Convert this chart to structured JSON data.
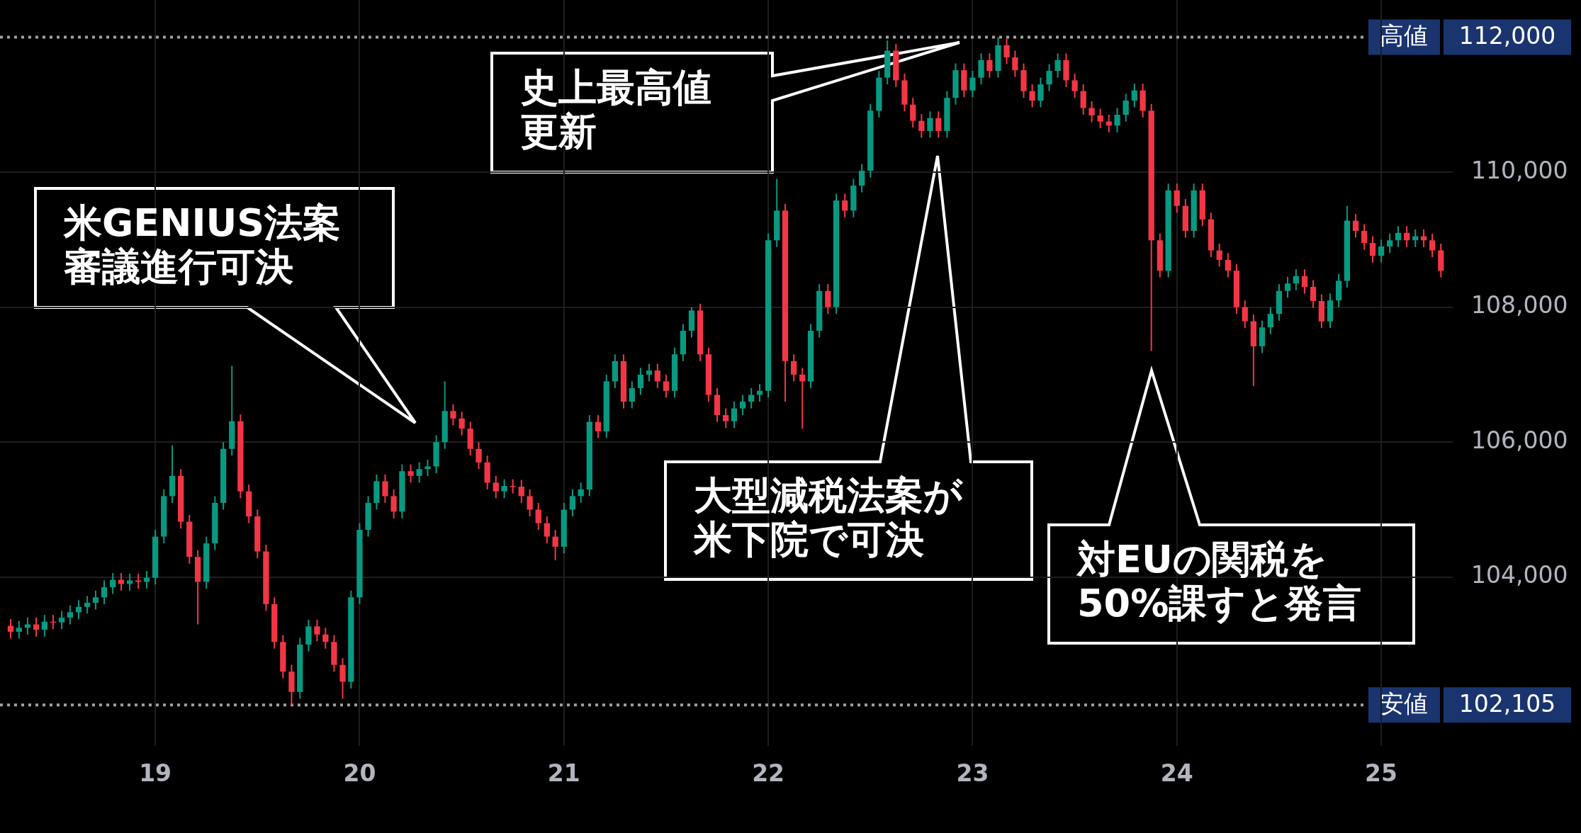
{
  "chart_data": {
    "type": "candlestick",
    "x": [
      18.292,
      18.333,
      18.375,
      18.417,
      18.458,
      18.5,
      18.542,
      18.583,
      18.625,
      18.667,
      18.708,
      18.75,
      18.792,
      18.833,
      18.875,
      18.917,
      18.958,
      19,
      19.042,
      19.083,
      19.125,
      19.167,
      19.208,
      19.25,
      19.292,
      19.333,
      19.375,
      19.417,
      19.458,
      19.5,
      19.542,
      19.583,
      19.625,
      19.667,
      19.708,
      19.75,
      19.792,
      19.833,
      19.875,
      19.917,
      19.958,
      20,
      20.042,
      20.083,
      20.125,
      20.167,
      20.208,
      20.25,
      20.292,
      20.333,
      20.375,
      20.417,
      20.458,
      20.5,
      20.542,
      20.583,
      20.625,
      20.667,
      20.708,
      20.75,
      20.792,
      20.833,
      20.875,
      20.917,
      20.958,
      21,
      21.042,
      21.083,
      21.125,
      21.167,
      21.208,
      21.25,
      21.292,
      21.333,
      21.375,
      21.417,
      21.458,
      21.5,
      21.542,
      21.583,
      21.625,
      21.667,
      21.708,
      21.75,
      21.792,
      21.833,
      21.875,
      21.917,
      21.958,
      22,
      22.042,
      22.083,
      22.125,
      22.167,
      22.208,
      22.25,
      22.292,
      22.333,
      22.375,
      22.417,
      22.458,
      22.5,
      22.542,
      22.583,
      22.625,
      22.667,
      22.708,
      22.75,
      22.792,
      22.833,
      22.875,
      22.917,
      22.958,
      23,
      23.042,
      23.083,
      23.125,
      23.167,
      23.208,
      23.25,
      23.292,
      23.333,
      23.375,
      23.417,
      23.458,
      23.5,
      23.542,
      23.583,
      23.625,
      23.667,
      23.708,
      23.75,
      23.792,
      23.833,
      23.875,
      23.917,
      23.958,
      24,
      24.042,
      24.083,
      24.125,
      24.167,
      24.208,
      24.25,
      24.292,
      24.333,
      24.375,
      24.417,
      24.458,
      24.5,
      24.542,
      24.583,
      24.625,
      24.667,
      24.708,
      24.75,
      24.792,
      24.833,
      24.875,
      24.917,
      24.958,
      25,
      25.042,
      25.083,
      25.125,
      25.167,
      25.208,
      25.25,
      25.292
    ],
    "ohlc": [
      [
        103280,
        103380,
        103090,
        103190
      ],
      [
        103190,
        103350,
        103090,
        103250
      ],
      [
        103250,
        103400,
        103150,
        103300
      ],
      [
        103300,
        103400,
        103120,
        103220
      ],
      [
        103220,
        103440,
        103120,
        103340
      ],
      [
        103340,
        103440,
        103230,
        103330
      ],
      [
        103330,
        103500,
        103230,
        103400
      ],
      [
        103400,
        103580,
        103300,
        103480
      ],
      [
        103480,
        103660,
        103380,
        103560
      ],
      [
        103560,
        103720,
        103460,
        103620
      ],
      [
        103620,
        103800,
        103520,
        103700
      ],
      [
        103700,
        103950,
        103600,
        103850
      ],
      [
        103850,
        104060,
        103750,
        103960
      ],
      [
        103960,
        104060,
        103800,
        103900
      ],
      [
        103900,
        104050,
        103800,
        103950
      ],
      [
        103950,
        104050,
        103830,
        103930
      ],
      [
        103930,
        104090,
        103830,
        103990
      ],
      [
        103990,
        104700,
        103890,
        104600
      ],
      [
        104600,
        105300,
        104500,
        105200
      ],
      [
        105200,
        105950,
        105100,
        105500
      ],
      [
        105500,
        105600,
        104720,
        104820
      ],
      [
        104820,
        104920,
        104200,
        104300
      ],
      [
        104300,
        104400,
        103300,
        103930
      ],
      [
        103930,
        104600,
        103830,
        104500
      ],
      [
        104500,
        105200,
        104400,
        105100
      ],
      [
        105100,
        106000,
        105000,
        105900
      ],
      [
        105900,
        107130,
        105800,
        106310
      ],
      [
        106310,
        106410,
        105170,
        105270
      ],
      [
        105270,
        105370,
        104800,
        104900
      ],
      [
        104900,
        105000,
        104280,
        104380
      ],
      [
        104380,
        104480,
        103500,
        103600
      ],
      [
        103600,
        103700,
        102940,
        103040
      ],
      [
        103040,
        103140,
        102500,
        102600
      ],
      [
        102600,
        102700,
        102105,
        102300
      ],
      [
        102300,
        103100,
        102200,
        103000
      ],
      [
        103000,
        103370,
        102900,
        103270
      ],
      [
        103270,
        103370,
        103050,
        103150
      ],
      [
        103150,
        103250,
        102940,
        103040
      ],
      [
        103040,
        103140,
        102600,
        102700
      ],
      [
        102700,
        102800,
        102200,
        102450
      ],
      [
        102450,
        103800,
        102350,
        103700
      ],
      [
        103700,
        104800,
        103600,
        104700
      ],
      [
        104700,
        105200,
        104600,
        105100
      ],
      [
        105100,
        105520,
        105000,
        105420
      ],
      [
        105420,
        105520,
        105100,
        105200
      ],
      [
        105200,
        105300,
        104870,
        104970
      ],
      [
        104970,
        105670,
        104870,
        105570
      ],
      [
        105570,
        105670,
        105400,
        105500
      ],
      [
        105500,
        105700,
        105400,
        105600
      ],
      [
        105600,
        105740,
        105500,
        105640
      ],
      [
        105640,
        106100,
        105540,
        106000
      ],
      [
        106000,
        106900,
        105900,
        106460
      ],
      [
        106460,
        106560,
        106250,
        106350
      ],
      [
        106350,
        106450,
        106100,
        106200
      ],
      [
        106200,
        106300,
        105800,
        105900
      ],
      [
        105900,
        106000,
        105600,
        105700
      ],
      [
        105700,
        105800,
        105300,
        105400
      ],
      [
        105400,
        105500,
        105170,
        105270
      ],
      [
        105270,
        105450,
        105170,
        105350
      ],
      [
        105350,
        105450,
        105240,
        105340
      ],
      [
        105340,
        105440,
        105100,
        105200
      ],
      [
        105200,
        105300,
        104900,
        105000
      ],
      [
        105000,
        105100,
        104700,
        104800
      ],
      [
        104800,
        104900,
        104500,
        104600
      ],
      [
        104600,
        104700,
        104250,
        104450
      ],
      [
        104450,
        105100,
        104350,
        105000
      ],
      [
        105000,
        105300,
        104900,
        105200
      ],
      [
        105200,
        105400,
        105100,
        105300
      ],
      [
        105300,
        106400,
        105200,
        106300
      ],
      [
        106300,
        106400,
        106060,
        106160
      ],
      [
        106160,
        107000,
        106060,
        106900
      ],
      [
        106900,
        107300,
        106800,
        107200
      ],
      [
        107200,
        107300,
        106500,
        106600
      ],
      [
        106600,
        106900,
        106500,
        106800
      ],
      [
        106800,
        107100,
        106700,
        107000
      ],
      [
        107000,
        107160,
        106900,
        107060
      ],
      [
        107060,
        107160,
        106800,
        106900
      ],
      [
        106900,
        107000,
        106660,
        106760
      ],
      [
        106760,
        107400,
        106660,
        107300
      ],
      [
        107300,
        107750,
        107200,
        107650
      ],
      [
        107650,
        108000,
        107550,
        107950
      ],
      [
        107950,
        108050,
        107200,
        107300
      ],
      [
        107300,
        107400,
        106600,
        106700
      ],
      [
        106700,
        106800,
        106300,
        106400
      ],
      [
        106400,
        106500,
        106210,
        106310
      ],
      [
        106310,
        106600,
        106210,
        106500
      ],
      [
        106500,
        106700,
        106400,
        106600
      ],
      [
        106600,
        106800,
        106500,
        106700
      ],
      [
        106700,
        106860,
        106600,
        106760
      ],
      [
        106760,
        109090,
        106660,
        108990
      ],
      [
        108990,
        109900,
        108890,
        109430
      ],
      [
        109430,
        109530,
        106600,
        107200
      ],
      [
        107200,
        107300,
        106900,
        107000
      ],
      [
        107000,
        107100,
        106200,
        106900
      ],
      [
        106900,
        107750,
        106800,
        107650
      ],
      [
        107650,
        108340,
        107550,
        108240
      ],
      [
        108240,
        108340,
        107900,
        108000
      ],
      [
        108000,
        109680,
        107900,
        109580
      ],
      [
        109580,
        109680,
        109330,
        109430
      ],
      [
        109430,
        109900,
        109330,
        109800
      ],
      [
        109800,
        110120,
        109700,
        110020
      ],
      [
        110020,
        111010,
        109920,
        110910
      ],
      [
        110910,
        111500,
        110810,
        111400
      ],
      [
        111400,
        111950,
        111300,
        111800
      ],
      [
        111800,
        111900,
        111260,
        111360
      ],
      [
        111360,
        111460,
        110900,
        111000
      ],
      [
        111000,
        111100,
        110660,
        110760
      ],
      [
        110760,
        110860,
        110510,
        110610
      ],
      [
        110610,
        110900,
        110510,
        110800
      ],
      [
        110800,
        110900,
        110510,
        110610
      ],
      [
        110610,
        111200,
        110510,
        111100
      ],
      [
        111100,
        111610,
        111000,
        111510
      ],
      [
        111510,
        111610,
        111110,
        111210
      ],
      [
        111210,
        111500,
        111110,
        111400
      ],
      [
        111400,
        111760,
        111300,
        111660
      ],
      [
        111660,
        111760,
        111400,
        111500
      ],
      [
        111500,
        112000,
        111400,
        111880
      ],
      [
        111880,
        111980,
        111600,
        111700
      ],
      [
        111700,
        111800,
        111410,
        111510
      ],
      [
        111510,
        111610,
        111100,
        111200
      ],
      [
        111200,
        111300,
        110960,
        111060
      ],
      [
        111060,
        111400,
        110960,
        111300
      ],
      [
        111300,
        111600,
        111200,
        111500
      ],
      [
        111500,
        111760,
        111400,
        111660
      ],
      [
        111660,
        111760,
        111260,
        111360
      ],
      [
        111360,
        111460,
        111100,
        111200
      ],
      [
        111200,
        111300,
        110850,
        110950
      ],
      [
        110950,
        111050,
        110740,
        110840
      ],
      [
        110840,
        110940,
        110650,
        110750
      ],
      [
        110750,
        110850,
        110590,
        110690
      ],
      [
        110690,
        110950,
        110590,
        110850
      ],
      [
        110850,
        111160,
        110750,
        111060
      ],
      [
        111060,
        111310,
        110960,
        111210
      ],
      [
        111210,
        111310,
        110810,
        110910
      ],
      [
        110910,
        111010,
        107350,
        108990
      ],
      [
        108990,
        109090,
        108440,
        108540
      ],
      [
        108540,
        109830,
        108440,
        109730
      ],
      [
        109730,
        109830,
        109400,
        109500
      ],
      [
        109500,
        109600,
        109030,
        109130
      ],
      [
        109130,
        109830,
        109030,
        109730
      ],
      [
        109730,
        109830,
        109200,
        109300
      ],
      [
        109300,
        109400,
        108740,
        108840
      ],
      [
        108840,
        108940,
        108600,
        108700
      ],
      [
        108700,
        108800,
        108440,
        108540
      ],
      [
        108540,
        108640,
        107900,
        108000
      ],
      [
        108000,
        108100,
        107690,
        107790
      ],
      [
        107790,
        107890,
        106830,
        107420
      ],
      [
        107420,
        107800,
        107320,
        107700
      ],
      [
        107700,
        108000,
        107600,
        107900
      ],
      [
        107900,
        108340,
        107800,
        108240
      ],
      [
        108240,
        108450,
        108140,
        108350
      ],
      [
        108350,
        108560,
        108250,
        108460
      ],
      [
        108460,
        108560,
        108200,
        108300
      ],
      [
        108300,
        108400,
        107990,
        108090
      ],
      [
        108090,
        108190,
        107690,
        107790
      ],
      [
        107790,
        108200,
        107690,
        108100
      ],
      [
        108100,
        108490,
        108000,
        108390
      ],
      [
        108390,
        109500,
        108290,
        109280
      ],
      [
        109280,
        109380,
        109030,
        109130
      ],
      [
        109130,
        109230,
        108850,
        108950
      ],
      [
        108950,
        109050,
        108660,
        108760
      ],
      [
        108760,
        109000,
        108660,
        108900
      ],
      [
        108900,
        109090,
        108800,
        108990
      ],
      [
        108990,
        109200,
        108890,
        109100
      ],
      [
        109100,
        109200,
        108890,
        108990
      ],
      [
        108990,
        109150,
        108890,
        109050
      ],
      [
        109050,
        109150,
        108890,
        108990
      ],
      [
        108990,
        109090,
        108740,
        108840
      ],
      [
        108840,
        108940,
        108440,
        108540
      ]
    ],
    "xlim": [
      18.24,
      25.35
    ],
    "xticks": [
      19,
      20,
      21,
      22,
      23,
      24,
      25
    ],
    "ylim": [
      101500,
      112550
    ],
    "yticks": [
      {
        "value": 104000,
        "label": "104,000"
      },
      {
        "value": 106000,
        "label": "106,000"
      },
      {
        "value": 108000,
        "label": "108,000"
      },
      {
        "value": 110000,
        "label": "110,000"
      }
    ],
    "grid": true,
    "ref_lines": [
      {
        "axis": "y",
        "value": 112000,
        "label": "高値 112,000",
        "line_style": "dotted"
      },
      {
        "axis": "y",
        "value": 102105,
        "label": "安値 102,105",
        "line_style": "dotted"
      }
    ],
    "annotations": [
      "米GENIUS法案審議進行可決",
      "史上最高値更新",
      "大型減税法案が米下院で可決",
      "対EUの関税を50%課すと発言"
    ]
  }
}
